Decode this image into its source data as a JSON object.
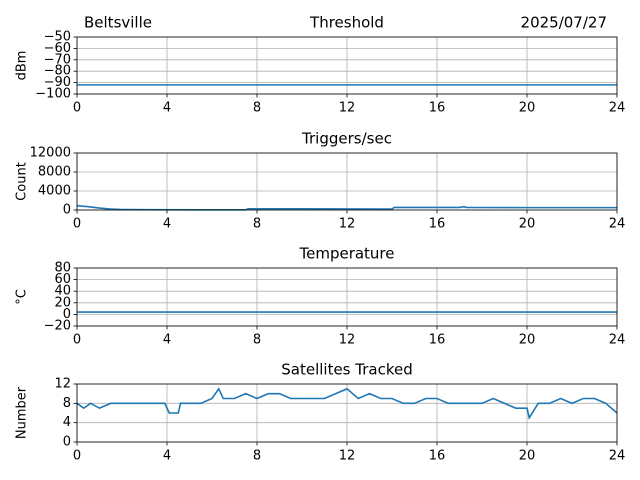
{
  "chart_data": [
    {
      "type": "line",
      "title": "Threshold",
      "location": "Beltsville",
      "date": "2025/07/27",
      "ylabel": "dBm",
      "x": [
        0,
        24
      ],
      "series": [
        {
          "color": "#1f77b4",
          "values": [
            -92,
            -92
          ]
        }
      ],
      "xlim": [
        0,
        24
      ],
      "xticks": [
        0,
        4,
        8,
        12,
        16,
        20,
        24
      ],
      "ylim": [
        -100,
        -50
      ],
      "yticks": [
        {
          "value": -100,
          "label": "−100"
        },
        {
          "value": -90,
          "label": "−90"
        },
        {
          "value": -80,
          "label": "−80"
        },
        {
          "value": -70,
          "label": "−70"
        },
        {
          "value": -60,
          "label": "−60"
        },
        {
          "value": -50,
          "label": "−50"
        }
      ],
      "grid": true
    },
    {
      "type": "line",
      "title": "Triggers/sec",
      "ylabel": "Count",
      "x": [
        0,
        0.5,
        1,
        1.5,
        2,
        3,
        5,
        7.5,
        7.6,
        10,
        14,
        14.1,
        17,
        17.2,
        17.3,
        20,
        24
      ],
      "series": [
        {
          "color": "#1f77b4",
          "values": [
            900,
            700,
            400,
            200,
            100,
            60,
            40,
            40,
            250,
            250,
            200,
            550,
            550,
            700,
            550,
            500,
            500
          ]
        }
      ],
      "xlim": [
        0,
        24
      ],
      "xticks": [
        0,
        4,
        8,
        12,
        16,
        20,
        24
      ],
      "ylim": [
        0,
        12000
      ],
      "yticks": [
        0,
        4000,
        8000,
        12000
      ],
      "grid": true
    },
    {
      "type": "line",
      "title": "Temperature",
      "ylabel": "°C",
      "x": [
        0,
        24
      ],
      "series": [
        {
          "color": "#1f77b4",
          "values": [
            4,
            4
          ]
        }
      ],
      "xlim": [
        0,
        24
      ],
      "xticks": [
        0,
        4,
        8,
        12,
        16,
        20,
        24
      ],
      "ylim": [
        -20,
        80
      ],
      "yticks": [
        {
          "value": -20,
          "label": "−20"
        },
        0,
        20,
        40,
        60,
        80
      ],
      "grid": true
    },
    {
      "type": "line",
      "title": "Satellites Tracked",
      "ylabel": "Number",
      "x": [
        0,
        0.3,
        0.6,
        1,
        1.5,
        2,
        3,
        3.9,
        4.1,
        4.5,
        4.6,
        5,
        5.5,
        6,
        6.3,
        6.5,
        7,
        7.5,
        8,
        8.5,
        9,
        9.5,
        10,
        10.5,
        11,
        11.5,
        12,
        12.5,
        13,
        13.5,
        14,
        14.5,
        15,
        15.5,
        16,
        16.5,
        17,
        17.5,
        18,
        18.5,
        19,
        19.5,
        20,
        20.1,
        20.5,
        21,
        21.5,
        22,
        22.5,
        23,
        23.5,
        24
      ],
      "series": [
        {
          "color": "#1f77b4",
          "values": [
            8,
            7,
            8,
            7,
            8,
            8,
            8,
            8,
            6,
            6,
            8,
            8,
            8,
            9,
            11,
            9,
            9,
            10,
            9,
            10,
            10,
            9,
            9,
            9,
            9,
            10,
            11,
            9,
            10,
            9,
            9,
            8,
            8,
            9,
            9,
            8,
            8,
            8,
            8,
            9,
            8,
            7,
            7,
            5,
            8,
            8,
            9,
            8,
            9,
            9,
            8,
            6
          ]
        }
      ],
      "xlim": [
        0,
        24
      ],
      "xticks": [
        0,
        4,
        8,
        12,
        16,
        20,
        24
      ],
      "ylim": [
        0,
        12
      ],
      "yticks": [
        0,
        4,
        8,
        12
      ],
      "grid": true
    }
  ]
}
